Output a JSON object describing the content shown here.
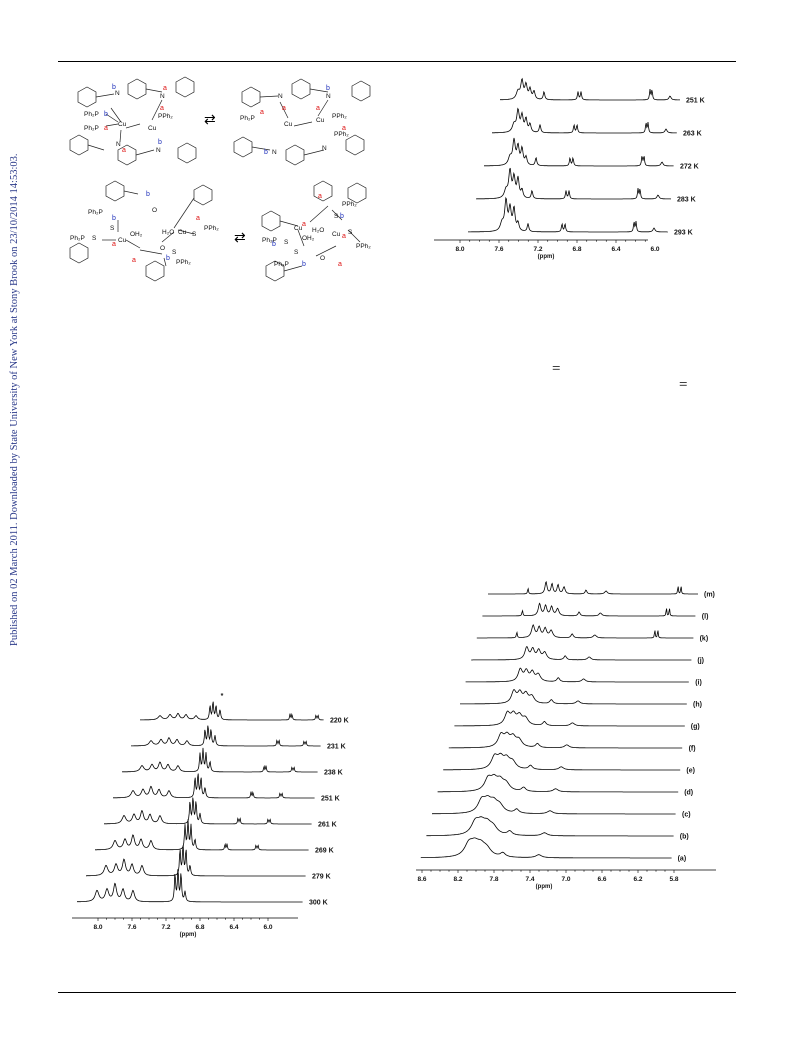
{
  "sidebar_text": "Published on 02 March 2011. Downloaded by State University of New York at Stony Brook on 23/10/2014 14:53:03.",
  "scheme": {
    "labels": {
      "ph2p": "Ph₂P",
      "pph2": "PPh₂",
      "cu": "Cu",
      "n": "N",
      "s": "S",
      "oh2": "OH₂",
      "h2o": "H₂O",
      "o": "O",
      "site_a": "a",
      "site_b": "b",
      "equilibrium": "⇄"
    }
  },
  "nmr_top_right": {
    "traces": [
      {
        "label": "251 K"
      },
      {
        "label": "263 K"
      },
      {
        "label": "272 K"
      },
      {
        "label": "283 K"
      },
      {
        "label": "293 K"
      }
    ],
    "axis": {
      "ticks": [
        "8.0",
        "7.6",
        "7.2",
        "6.8",
        "6.4",
        "6.0"
      ],
      "unit": "(ppm)"
    }
  },
  "nmr_bottom_left": {
    "traces": [
      {
        "label": "220 K"
      },
      {
        "label": "231 K"
      },
      {
        "label": "238 K"
      },
      {
        "label": "251 K"
      },
      {
        "label": "261 K"
      },
      {
        "label": "269 K"
      },
      {
        "label": "279 K"
      },
      {
        "label": "300 K"
      }
    ],
    "asterisk": "*",
    "axis": {
      "ticks": [
        "8.0",
        "7.6",
        "7.2",
        "6.8",
        "6.4",
        "6.0"
      ],
      "unit": "(ppm)"
    }
  },
  "nmr_bottom_right": {
    "traces": [
      {
        "label": "(m)"
      },
      {
        "label": "(l)"
      },
      {
        "label": "(k)"
      },
      {
        "label": "(j)"
      },
      {
        "label": "(i)"
      },
      {
        "label": "(h)"
      },
      {
        "label": "(g)"
      },
      {
        "label": "(f)"
      },
      {
        "label": "(e)"
      },
      {
        "label": "(d)"
      },
      {
        "label": "(c)"
      },
      {
        "label": "(b)"
      },
      {
        "label": "(a)"
      }
    ],
    "axis": {
      "ticks": [
        "8.6",
        "8.2",
        "7.8",
        "7.4",
        "7.0",
        "6.6",
        "6.2",
        "5.8"
      ],
      "unit": "(ppm)"
    }
  },
  "equals_sign": "="
}
